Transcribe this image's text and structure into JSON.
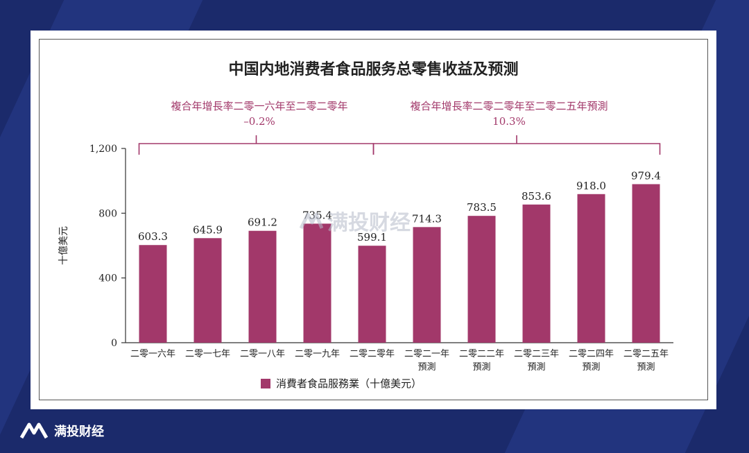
{
  "colors": {
    "bar": "#a2386a",
    "annotation": "#a2386a",
    "background": "#1b2a6b"
  },
  "brand": {
    "name": "满投财经",
    "icon": "logo-icon"
  },
  "watermark": {
    "text": "满投财经"
  },
  "chart_data": {
    "type": "bar",
    "title": "中国内地消费者食品服务总零售收益及预测",
    "ylabel": "十億美元",
    "xlabel": "",
    "ylim": [
      0,
      1200
    ],
    "yticks": [
      "0",
      "400",
      "800",
      "1,200"
    ],
    "ytick_values": [
      0,
      400,
      800,
      1200
    ],
    "categories": [
      [
        "二零一六年"
      ],
      [
        "二零一七年"
      ],
      [
        "二零一八年"
      ],
      [
        "二零一九年"
      ],
      [
        "二零二零年"
      ],
      [
        "二零二一年",
        "預測"
      ],
      [
        "二零二二年",
        "預測"
      ],
      [
        "二零二三年",
        "預測"
      ],
      [
        "二零二四年",
        "預測"
      ],
      [
        "二零二五年",
        "預測"
      ]
    ],
    "series": [
      {
        "name": "消費者食品服務業（十億美元）",
        "values": [
          603.3,
          645.9,
          691.2,
          735.4,
          599.1,
          714.3,
          783.5,
          853.6,
          918.0,
          979.4
        ],
        "labels": [
          "603.3",
          "645.9",
          "691.2",
          "735.4",
          "599.1",
          "714.3",
          "783.5",
          "853.6",
          "918.0",
          "979.4"
        ]
      }
    ],
    "annotations": [
      {
        "lines": [
          "複合年增長率二零一六年至二零二零年",
          "–0.2%"
        ],
        "from": 0,
        "to": 4
      },
      {
        "lines": [
          "複合年增長率二零二零年至二零二五年預測",
          "10.3%"
        ],
        "from": 4,
        "to": 9
      }
    ],
    "legend": "bottom"
  }
}
